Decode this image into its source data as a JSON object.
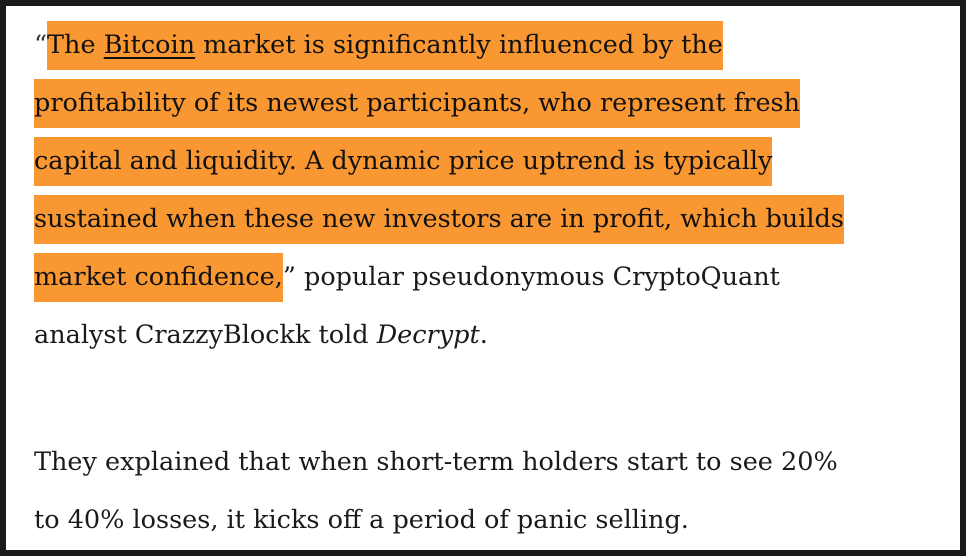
{
  "quote_paragraph": {
    "open_quote": "“",
    "line1_a": "The ",
    "link": "Bitcoin",
    "line1_b": " market is significantly influenced by the",
    "line2": "profitability of its newest participants, who represent fresh",
    "line3": "capital and liquidity. A dynamic price uptrend is typically",
    "line4": "sustained when these new investors are in profit, which builds",
    "line5_hl": "market confidence,",
    "line5_rest": "” popular pseudonymous CryptoQuant",
    "line6_a": "analyst CrazzyBlockk told ",
    "line6_em": "Decrypt",
    "line6_b": "."
  },
  "second_paragraph": {
    "line1": "They explained that when short-term holders start to see 20%",
    "line2": "to 40% losses, it kicks off a period of panic selling."
  },
  "highlight_color": "#f99732"
}
